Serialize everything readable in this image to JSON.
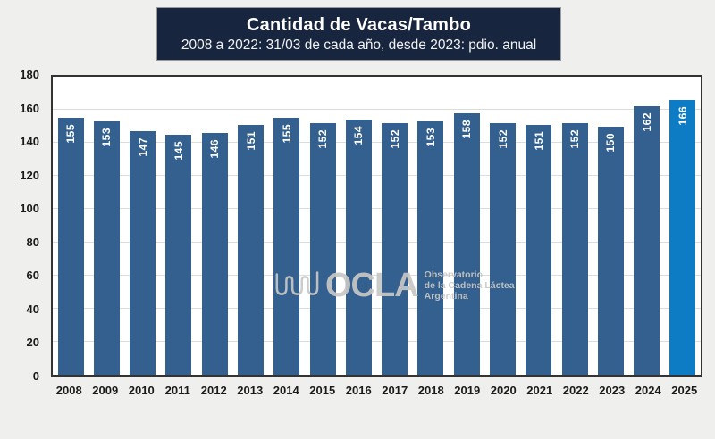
{
  "header": {
    "title": "Cantidad  de Vacas/Tambo",
    "subtitle": "2008 a 2022: 31/03 de cada año, desde 2023: pdio. anual"
  },
  "watermark": {
    "icon": "ocla-squiggle-icon",
    "brand": "OCLA",
    "tagline_lines": [
      "Observatorio",
      "de la Cadena Láctea",
      "Argentina"
    ]
  },
  "colors": {
    "background": "#EFEFED",
    "title_bg": "#17263E",
    "title_text": "#FFFFFF",
    "bar": "#33608F",
    "bar_highlight": "#0D7CC4",
    "bar_value_label": "#FFFFFF",
    "grid": "#DCDCDC",
    "plot_bg": "#FFFFFF",
    "plot_border": "#333333",
    "axis_text": "#1A1A1A",
    "watermark_gray": "#C7C8C6"
  },
  "chart_data": {
    "type": "bar",
    "title": "Cantidad  de Vacas/Tambo",
    "subtitle": "2008 a 2022: 31/03 de cada año, desde 2023: pdio. anual",
    "categories": [
      "2008",
      "2009",
      "2010",
      "2011",
      "2012",
      "2013",
      "2014",
      "2015",
      "2016",
      "2017",
      "2018",
      "2019",
      "2020",
      "2021",
      "2022",
      "2023",
      "2024",
      "2025"
    ],
    "values": [
      155,
      153,
      147,
      145,
      146,
      151,
      155,
      152,
      154,
      152,
      153,
      158,
      152,
      151,
      152,
      150,
      162,
      166
    ],
    "highlight_category": "2025",
    "xlabel": "",
    "ylabel": "",
    "ylim": [
      0,
      180
    ],
    "ytick_step": 20,
    "yticks": [
      0,
      20,
      40,
      60,
      80,
      100,
      120,
      140,
      160,
      180
    ],
    "grid": true,
    "legend": false,
    "value_labels": "inside-top-rotated-90"
  }
}
